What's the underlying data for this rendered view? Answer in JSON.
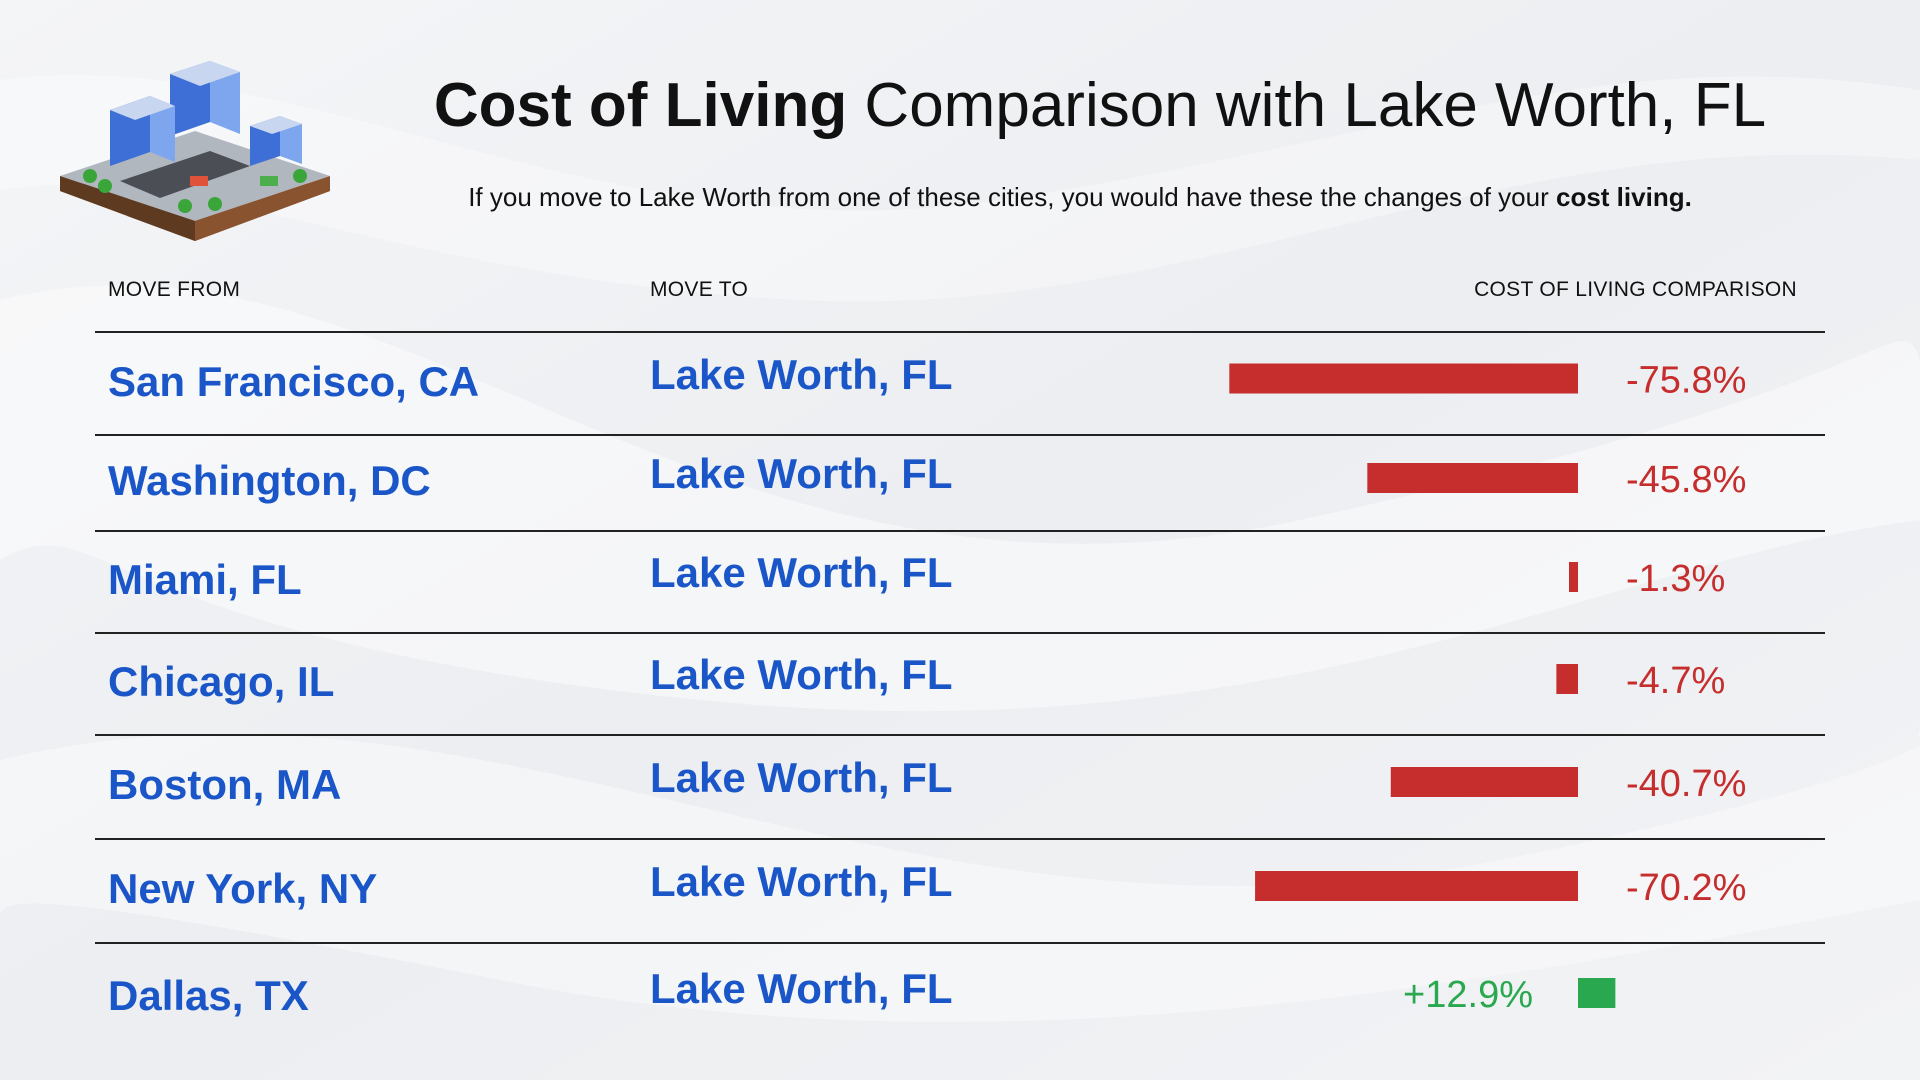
{
  "header": {
    "title_bold": "Cost of Living",
    "title_rest": " Comparison with  Lake Worth, FL",
    "subtitle_text": "If you move to Lake Worth from one of these cities, you would have these the changes of your ",
    "subtitle_bold": "cost living."
  },
  "columns": {
    "move_from": "MOVE FROM",
    "move_to": "MOVE TO",
    "comparison": "COST OF LIVING COMPARISON"
  },
  "colors": {
    "negative": "#c62d2d",
    "positive": "#2aa84f",
    "city_text": "#1a56c8"
  },
  "chart_data": {
    "type": "bar",
    "orientation": "horizontal",
    "categories": [
      "San Francisco, CA",
      "Washington, DC",
      "Miami, FL",
      "Chicago, IL",
      "Boston, MA",
      "New York, NY",
      "Dallas, TX"
    ],
    "destination": "Lake Worth, FL",
    "values": [
      -75.8,
      -45.8,
      -1.3,
      -4.7,
      -40.7,
      -70.2,
      12.9
    ],
    "labels": [
      "-75.8%",
      "-45.8%",
      "-1.3%",
      "-4.7%",
      "-40.7%",
      "-70.2%",
      "+12.9%"
    ]
  }
}
